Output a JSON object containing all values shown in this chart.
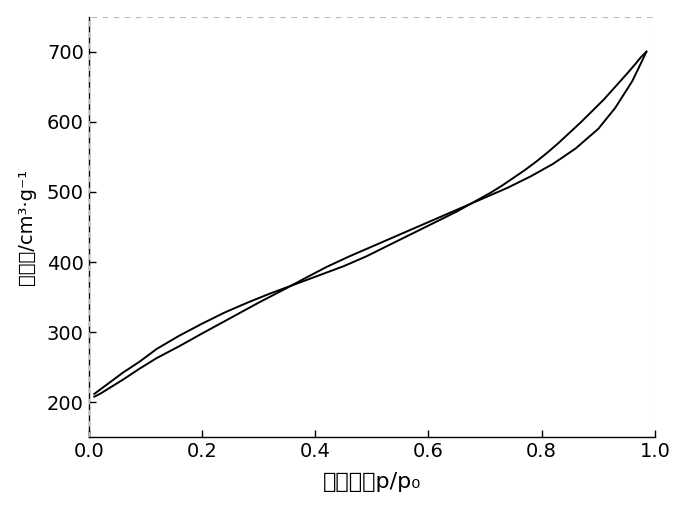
{
  "adsorption_x": [
    0.01,
    0.02,
    0.04,
    0.06,
    0.09,
    0.12,
    0.16,
    0.2,
    0.25,
    0.3,
    0.35,
    0.38,
    0.42,
    0.46,
    0.5,
    0.54,
    0.58,
    0.62,
    0.66,
    0.7,
    0.74,
    0.78,
    0.82,
    0.86,
    0.9,
    0.93,
    0.96,
    0.975,
    0.985
  ],
  "adsorption_y": [
    208,
    212,
    222,
    232,
    248,
    263,
    280,
    298,
    320,
    342,
    363,
    376,
    393,
    408,
    422,
    436,
    450,
    464,
    478,
    492,
    506,
    522,
    540,
    562,
    590,
    620,
    658,
    683,
    700
  ],
  "desorption_x": [
    0.985,
    0.975,
    0.965,
    0.95,
    0.93,
    0.91,
    0.89,
    0.87,
    0.85,
    0.83,
    0.81,
    0.79,
    0.77,
    0.75,
    0.73,
    0.71,
    0.69,
    0.67,
    0.65,
    0.63,
    0.61,
    0.59,
    0.57,
    0.55,
    0.53,
    0.51,
    0.49,
    0.47,
    0.45,
    0.43,
    0.41,
    0.39,
    0.37,
    0.35,
    0.32,
    0.28,
    0.24,
    0.2,
    0.16,
    0.12,
    0.09,
    0.06,
    0.04,
    0.02,
    0.01
  ],
  "desorption_y": [
    700,
    692,
    682,
    668,
    650,
    632,
    616,
    600,
    585,
    570,
    556,
    543,
    531,
    520,
    509,
    499,
    490,
    481,
    472,
    464,
    456,
    448,
    440,
    432,
    424,
    416,
    408,
    401,
    394,
    388,
    382,
    376,
    370,
    364,
    355,
    342,
    328,
    312,
    295,
    276,
    258,
    242,
    230,
    218,
    212
  ],
  "xlabel": "相对压力p/p₀",
  "ylabel": "吸附量/cm³·g⁻¹",
  "xlim": [
    0.0,
    1.0
  ],
  "ylim": [
    150,
    750
  ],
  "xticks": [
    0.0,
    0.2,
    0.4,
    0.6,
    0.8,
    1.0
  ],
  "yticks": [
    200,
    300,
    400,
    500,
    600,
    700
  ],
  "line_color": "#000000",
  "line_width": 1.4,
  "background_color": "#ffffff",
  "xlabel_fontsize": 16,
  "ylabel_fontsize": 14,
  "tick_fontsize": 14
}
